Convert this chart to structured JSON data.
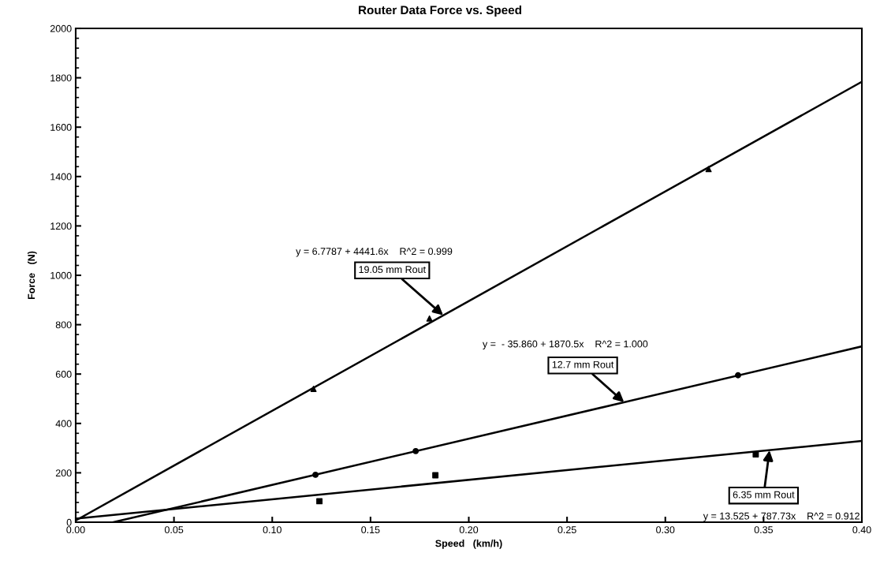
{
  "chart_data": {
    "type": "scatter",
    "title": "Router Data Force vs. Speed",
    "xlabel": "Speed   (km/h)",
    "ylabel": "Force   (N)",
    "series": [
      {
        "color": "#000000",
        "marker": "triangle",
        "x": [
          0.121,
          0.18,
          0.322
        ],
        "values": [
          540,
          825,
          1430
        ]
      },
      {
        "color": "#000000",
        "marker": "circle",
        "x": [
          0.122,
          0.173,
          0.337
        ],
        "values": [
          192,
          288,
          595
        ]
      },
      {
        "color": "#000000",
        "marker": "square",
        "x": [
          0.124,
          0.183,
          0.346
        ],
        "values": [
          85,
          190,
          275
        ]
      },
      {
        "type": "line",
        "color": "#000000",
        "marker": "none",
        "x": [
          0.0,
          0.4
        ],
        "values": [
          7,
          1784
        ]
      },
      {
        "type": "line",
        "color": "#000000",
        "marker": "none",
        "x": [
          0.0192,
          0.4
        ],
        "values": [
          0,
          712
        ]
      },
      {
        "type": "line",
        "color": "#000000",
        "marker": "none",
        "x": [
          0.0,
          0.4
        ],
        "values": [
          14,
          329
        ]
      }
    ],
    "annotations": [
      "y = 6.7787 + 4441.6x    R^2 = 0.999",
      {
        "text": "19.05 mm Rout",
        "x": 0.187,
        "y": 838
      },
      "y =  - 35.860 + 1870.5x    R^2 = 1.000",
      {
        "text": "12.7 mm Rout",
        "x": 0.279,
        "y": 486
      },
      {
        "text": "6.35 mm Rout",
        "x": 0.353,
        "y": 291
      },
      "y = 13.525 + 787.73x    R^2 = 0.912"
    ],
    "xlim": [
      0.0,
      0.4
    ],
    "xticks": [
      {
        "value": 0,
        "label": "0.00"
      },
      {
        "value": 0.05,
        "label": "0.05"
      },
      {
        "value": 0.1,
        "label": "0.10"
      },
      {
        "value": 0.15,
        "label": "0.15"
      },
      {
        "value": 0.2,
        "label": "0.20"
      },
      {
        "value": 0.25,
        "label": "0.25"
      },
      {
        "value": 0.3,
        "label": "0.30"
      },
      {
        "value": 0.35,
        "label": "0.35"
      },
      {
        "value": 0.4,
        "label": "0.40"
      }
    ],
    "ylim": [
      0,
      2000
    ],
    "yticks": [
      0,
      200,
      400,
      600,
      800,
      1000,
      1200,
      1400,
      1600,
      1800,
      2000
    ],
    "grid": false,
    "legend": false
  }
}
